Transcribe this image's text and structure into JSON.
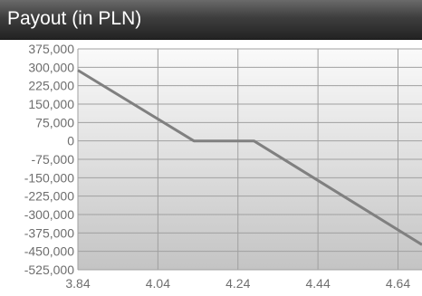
{
  "header": {
    "title": "Payout (in PLN)"
  },
  "chart_data": {
    "type": "line",
    "title": "Payout (in PLN)",
    "xlabel": "",
    "ylabel": "",
    "x_ticks": [
      "3.84",
      "4.04",
      "4.24",
      "4.44",
      "4.64"
    ],
    "y_ticks": [
      "375,000",
      "300,000",
      "225,000",
      "150,000",
      "75,000",
      "0",
      "-75,000",
      "-150,000",
      "-225,000",
      "-300,000",
      "-375,000",
      "-450,000",
      "-525,000"
    ],
    "xlim": [
      3.84,
      4.7
    ],
    "ylim": [
      -525000,
      375000
    ],
    "grid": true,
    "colors": {
      "line": "#808080",
      "grid": "#a0a0a0",
      "plot_top": "#fafafa",
      "plot_bottom": "#c4c4c4",
      "title_text": "#ffffff",
      "tick_text": "#6e6e6e"
    },
    "series": [
      {
        "x": [
          3.84,
          4.13,
          4.28,
          4.7
        ],
        "y": [
          288000,
          0,
          0,
          -423000
        ]
      }
    ]
  }
}
